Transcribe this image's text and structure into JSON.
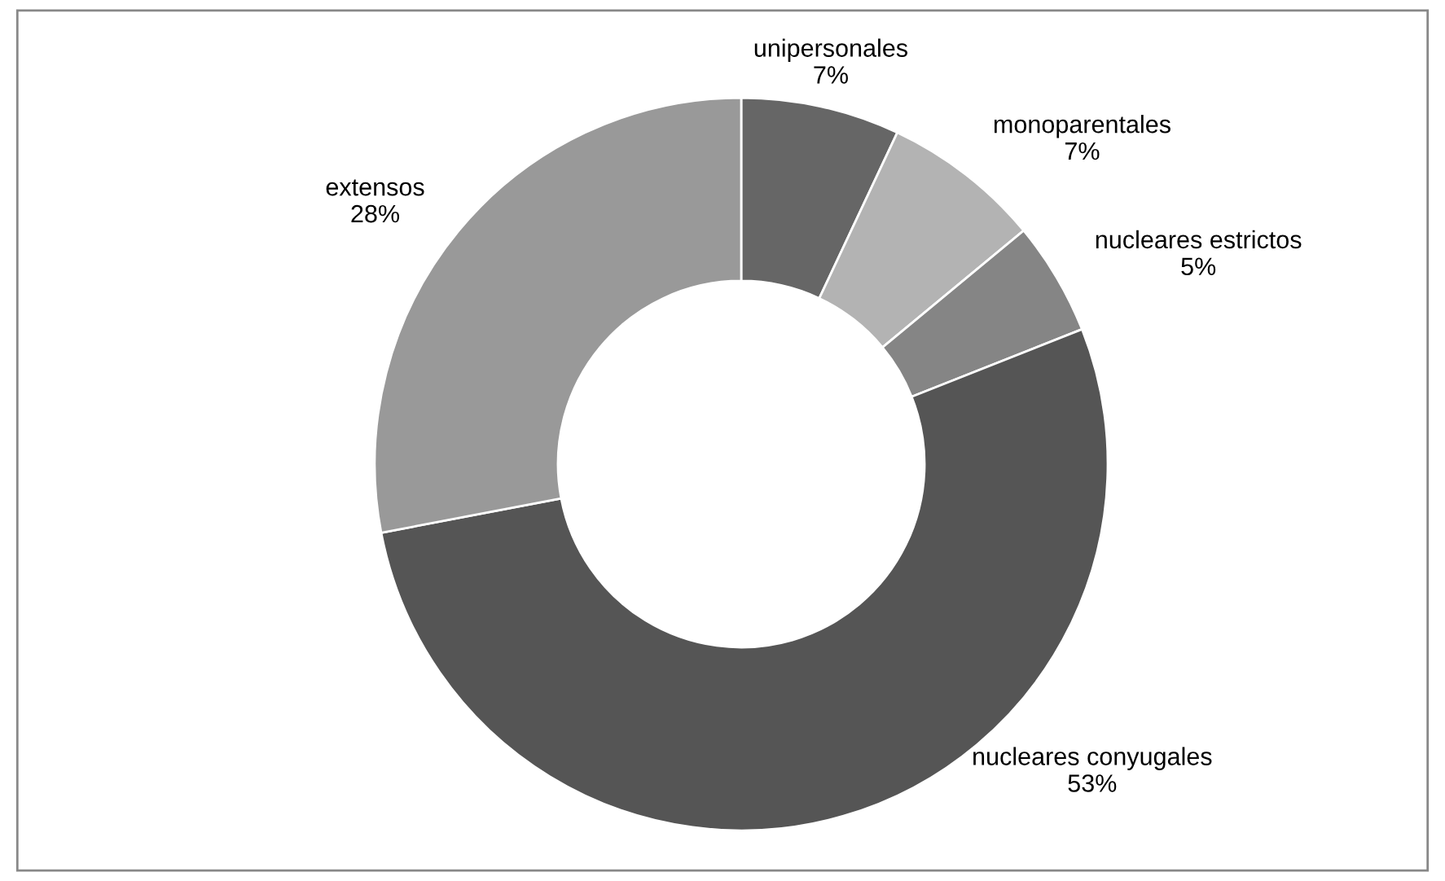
{
  "chart_data": {
    "type": "donut",
    "categories": [
      "unipersonales",
      "monoparentales",
      "nucleares estrictos",
      "nucleares conyugales",
      "extensos"
    ],
    "values": [
      7,
      7,
      5,
      53,
      28
    ],
    "colors": [
      "#666666",
      "#b3b3b3",
      "#858585",
      "#555555",
      "#999999"
    ],
    "value_labels": [
      "7%",
      "7%",
      "5%",
      "53%",
      "28%"
    ],
    "legend": false
  }
}
